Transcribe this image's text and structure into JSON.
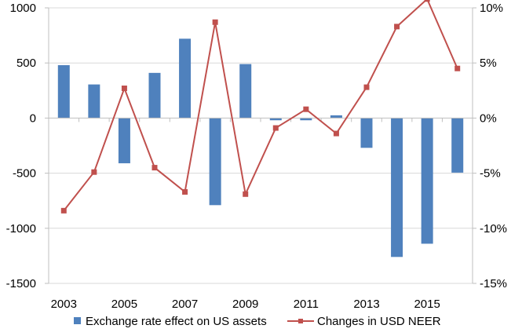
{
  "chart_data": {
    "type": "bar+line",
    "categories": [
      "2003",
      "2004",
      "2005",
      "2006",
      "2007",
      "2008",
      "2009",
      "2010",
      "2011",
      "2012",
      "2013",
      "2014",
      "2015",
      "2016"
    ],
    "x_tick_labels": [
      "2003",
      "2005",
      "2007",
      "2009",
      "2011",
      "2013",
      "2015"
    ],
    "series": [
      {
        "name": "Exchange rate effect on US assets",
        "type": "bar",
        "axis": "left",
        "color": "#4f81bd",
        "values": [
          480,
          305,
          -410,
          410,
          720,
          -790,
          490,
          -20,
          -20,
          25,
          -270,
          -1260,
          -1140,
          -495
        ]
      },
      {
        "name": "Changes in USD NEER",
        "type": "line",
        "axis": "right",
        "color": "#c0504d",
        "marker": "square",
        "values": [
          -8.4,
          -4.9,
          2.7,
          -4.5,
          -6.7,
          8.7,
          -6.9,
          -0.9,
          0.8,
          -1.4,
          2.8,
          8.3,
          10.8,
          4.5
        ]
      }
    ],
    "y_left": {
      "ylim": [
        -1500,
        1000
      ],
      "ticks": [
        "1000",
        "500",
        "0",
        "-500",
        "-1000",
        "-1500"
      ]
    },
    "y_right": {
      "ylim": [
        -15,
        10
      ],
      "ticks": [
        "10%",
        "5%",
        "0%",
        "-5%",
        "-10%",
        "-15%"
      ]
    },
    "grid": true,
    "legend": "bottom"
  }
}
